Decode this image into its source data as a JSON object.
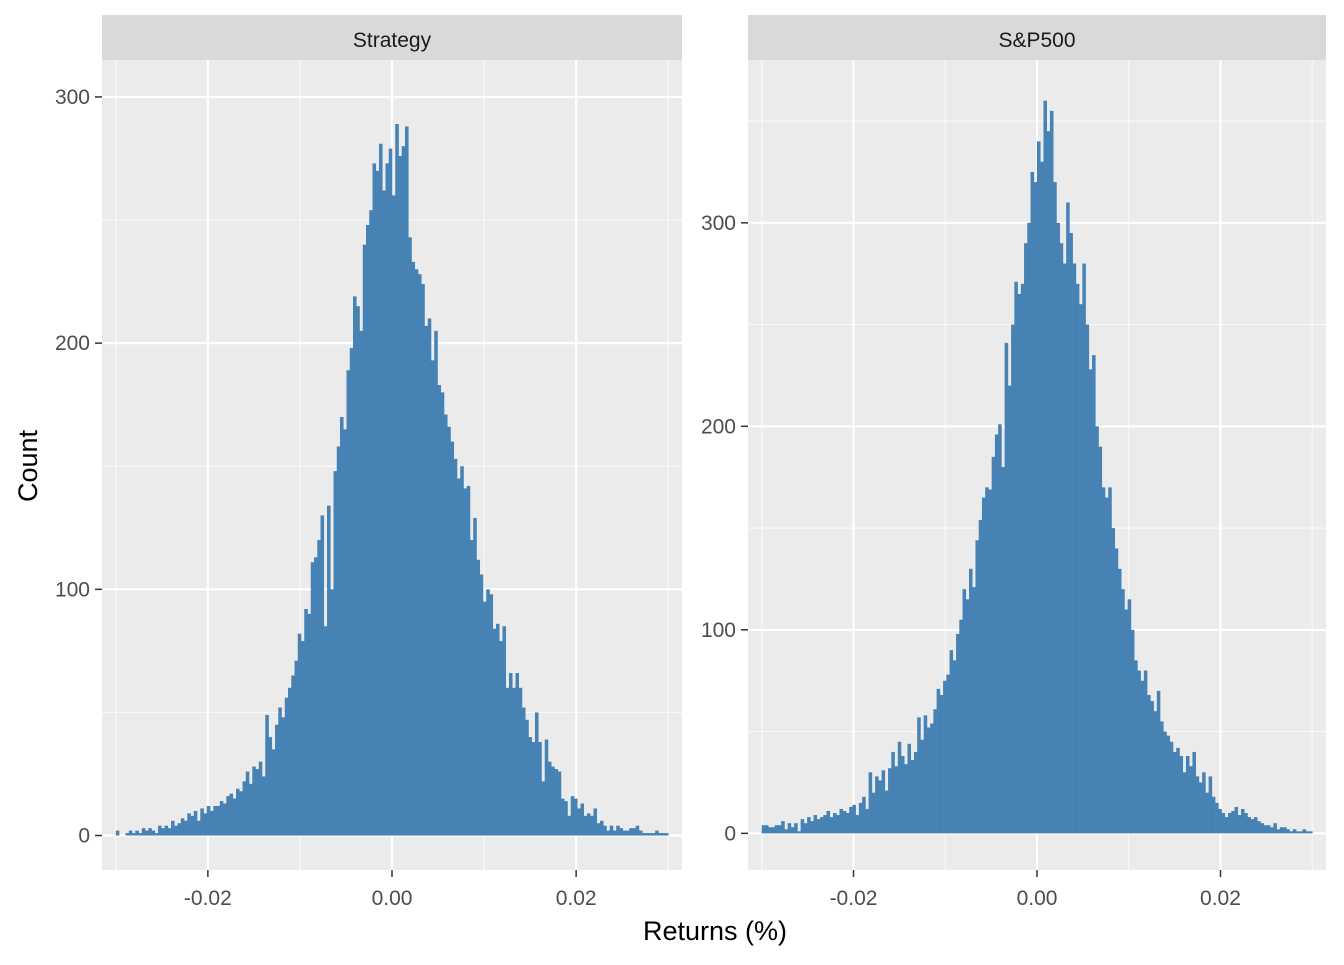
{
  "figure": {
    "xlabel": "Returns (%)",
    "ylabel": "Count"
  },
  "colors": {
    "bar_fill": "#4682B4",
    "panel_bg": "#EBEBEB",
    "strip_bg": "#D9D9D9",
    "grid_major": "#FFFFFF",
    "axis_text": "#4D4D4D",
    "title_text": "#1A1A1A"
  },
  "chart_data": [
    {
      "type": "bar",
      "title": "Strategy",
      "xlabel": "Returns (%)",
      "ylabel": "Count",
      "xlim": [
        -0.0315,
        0.0315
      ],
      "ylim": [
        -14,
        315
      ],
      "xticks": [
        -0.02,
        0.0,
        0.02
      ],
      "xtick_labels": [
        "-0.02",
        "0.00",
        "0.02"
      ],
      "yticks": [
        0,
        100,
        200,
        300
      ],
      "ytick_labels": [
        "0",
        "100",
        "200",
        "300"
      ],
      "grid": true,
      "bin_range": [
        -0.03,
        0.03
      ],
      "values": [
        2,
        0,
        0,
        1,
        2,
        1,
        2,
        1,
        3,
        2,
        3,
        2,
        1,
        4,
        3,
        4,
        3,
        6,
        4,
        5,
        7,
        6,
        9,
        8,
        10,
        6,
        11,
        9,
        12,
        10,
        12,
        12,
        14,
        13,
        16,
        17,
        15,
        19,
        18,
        22,
        26,
        21,
        28,
        27,
        30,
        24,
        49,
        40,
        35,
        45,
        52,
        48,
        56,
        60,
        65,
        71,
        82,
        79,
        92,
        90,
        111,
        113,
        120,
        130,
        85,
        134,
        100,
        148,
        158,
        170,
        165,
        189,
        198,
        219,
        215,
        205,
        240,
        248,
        254,
        273,
        270,
        281,
        262,
        273,
        279,
        260,
        289,
        276,
        280,
        288,
        243,
        233,
        230,
        228,
        224,
        207,
        210,
        193,
        205,
        183,
        180,
        171,
        166,
        160,
        153,
        145,
        150,
        141,
        142,
        120,
        129,
        112,
        106,
        95,
        100,
        98,
        84,
        86,
        79,
        85,
        60,
        66,
        60,
        66,
        60,
        52,
        47,
        40,
        38,
        50,
        38,
        22,
        39,
        30,
        28,
        27,
        26,
        15,
        14,
        8,
        16,
        15,
        11,
        13,
        8,
        9,
        8,
        11,
        5,
        6,
        4,
        2,
        4,
        2,
        4,
        3,
        2,
        2,
        3,
        3,
        4,
        2,
        1,
        1,
        1,
        1,
        2,
        1,
        1,
        1
      ]
    },
    {
      "type": "bar",
      "title": "S&P500",
      "xlabel": "Returns (%)",
      "ylabel": "Count",
      "xlim": [
        -0.0315,
        0.0315
      ],
      "ylim": [
        -18,
        380
      ],
      "xticks": [
        -0.02,
        0.0,
        0.02
      ],
      "xtick_labels": [
        "-0.02",
        "0.00",
        "0.02"
      ],
      "yticks": [
        0,
        100,
        200,
        300
      ],
      "ytick_labels": [
        "0",
        "100",
        "200",
        "300"
      ],
      "grid": true,
      "bin_range": [
        -0.03,
        0.03
      ],
      "values": [
        4,
        4,
        3,
        3,
        4,
        4,
        6,
        2,
        5,
        3,
        5,
        1,
        7,
        5,
        8,
        6,
        9,
        7,
        8,
        9,
        11,
        8,
        10,
        9,
        12,
        11,
        10,
        13,
        14,
        9,
        15,
        18,
        12,
        30,
        20,
        28,
        26,
        31,
        21,
        32,
        40,
        33,
        45,
        38,
        34,
        44,
        36,
        40,
        57,
        46,
        58,
        52,
        54,
        61,
        71,
        68,
        75,
        78,
        90,
        85,
        98,
        105,
        120,
        115,
        130,
        121,
        144,
        154,
        165,
        170,
        169,
        185,
        196,
        201,
        180,
        241,
        220,
        250,
        271,
        265,
        270,
        290,
        300,
        325,
        320,
        340,
        330,
        360,
        345,
        355,
        320,
        300,
        290,
        280,
        310,
        295,
        280,
        270,
        260,
        280,
        250,
        228,
        235,
        200,
        190,
        170,
        165,
        170,
        150,
        140,
        130,
        120,
        110,
        115,
        100,
        85,
        80,
        75,
        80,
        68,
        65,
        60,
        70,
        55,
        50,
        48,
        45,
        40,
        42,
        38,
        30,
        38,
        33,
        40,
        28,
        25,
        30,
        20,
        28,
        18,
        15,
        12,
        10,
        8,
        10,
        11,
        13,
        9,
        12,
        10,
        8,
        7,
        8,
        6,
        5,
        4,
        4,
        3,
        5,
        2,
        3,
        3,
        2,
        1,
        2,
        1,
        1,
        2,
        1,
        1
      ]
    }
  ]
}
